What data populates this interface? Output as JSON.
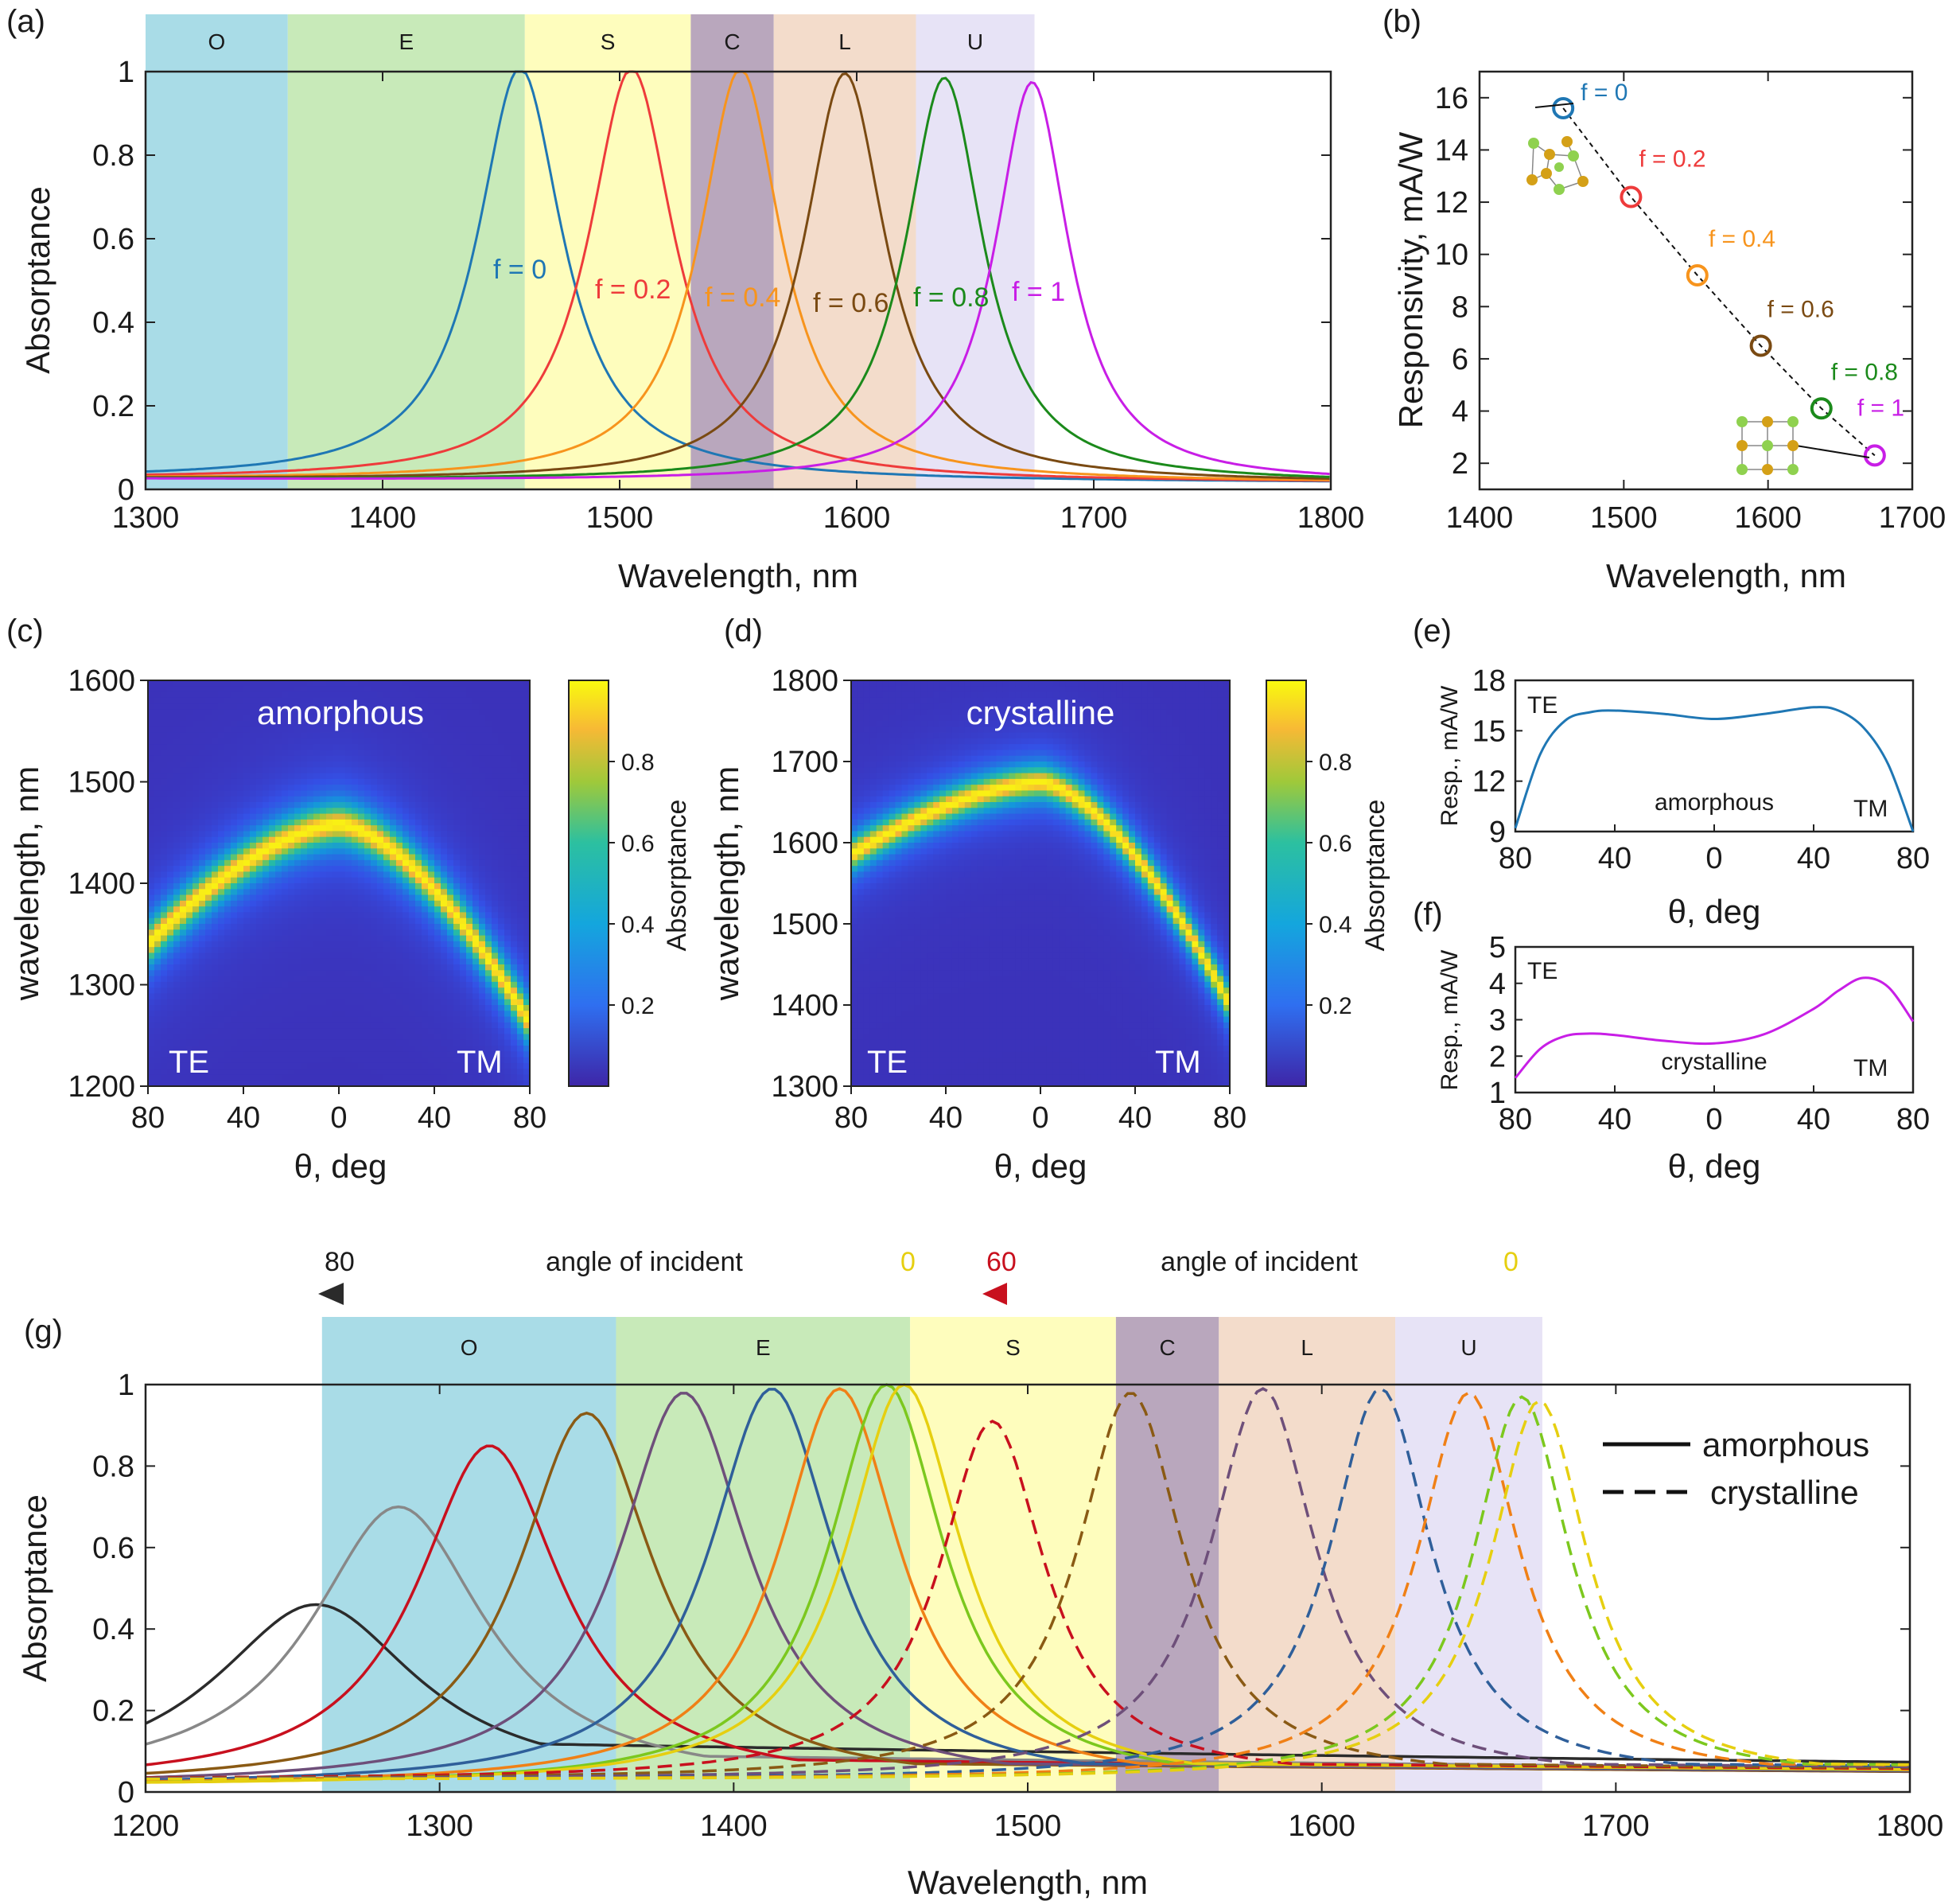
{
  "panels": {
    "a": "(a)",
    "b": "(b)",
    "c": "(c)",
    "d": "(d)",
    "e": "(e)",
    "f": "(f)",
    "g": "(g)"
  },
  "bands": [
    {
      "label": "O",
      "from": 1260,
      "to": 1360,
      "color": "#a9dce7"
    },
    {
      "label": "E",
      "from": 1360,
      "to": 1460,
      "color": "#c8eab9"
    },
    {
      "label": "S",
      "from": 1460,
      "to": 1530,
      "color": "#fefdbd"
    },
    {
      "label": "C",
      "from": 1530,
      "to": 1565,
      "color": "#b9a7bd"
    },
    {
      "label": "L",
      "from": 1565,
      "to": 1625,
      "color": "#f3dccb"
    },
    {
      "label": "U",
      "from": 1625,
      "to": 1675,
      "color": "#e7e3f6"
    }
  ],
  "chart_data": [
    {
      "id": "a",
      "type": "line",
      "xlabel": "Wavelength, nm",
      "ylabel": "Absorptance",
      "xlim": [
        1300,
        1800
      ],
      "ylim": [
        0,
        1
      ],
      "xticks": [
        1300,
        1400,
        1500,
        1600,
        1700,
        1800
      ],
      "yticks": [
        0,
        0.2,
        0.4,
        0.6,
        0.8,
        1
      ],
      "series": [
        {
          "name": "f = 0",
          "center": 1458,
          "peak": 1.0,
          "width": 22,
          "base": 0.02,
          "color": "#1f77b4"
        },
        {
          "name": "f = 0.2",
          "center": 1505,
          "peak": 1.0,
          "width": 22,
          "base": 0.02,
          "color": "#ee3b3b"
        },
        {
          "name": "f = 0.4",
          "center": 1551,
          "peak": 1.0,
          "width": 21,
          "base": 0.02,
          "color": "#f7941d"
        },
        {
          "name": "f = 0.6",
          "center": 1595,
          "peak": 0.99,
          "width": 21,
          "base": 0.02,
          "color": "#7a4a12"
        },
        {
          "name": "f = 0.8",
          "center": 1637,
          "peak": 0.98,
          "width": 20,
          "base": 0.02,
          "color": "#1b8a1b"
        },
        {
          "name": "f = 1",
          "center": 1674,
          "peak": 0.97,
          "width": 19,
          "base": 0.02,
          "color": "#c81ee6"
        }
      ]
    },
    {
      "id": "b",
      "type": "scatter",
      "xlabel": "Wavelength, nm",
      "ylabel": "Responsivity, mA/W",
      "xlim": [
        1400,
        1700
      ],
      "ylim": [
        1,
        17
      ],
      "xticks": [
        1400,
        1500,
        1600,
        1700
      ],
      "yticks": [
        2,
        4,
        6,
        8,
        10,
        12,
        14,
        16
      ],
      "points": [
        {
          "label": "f = 0",
          "x": 1458,
          "y": 15.6,
          "color": "#1f77b4"
        },
        {
          "label": "f = 0.2",
          "x": 1505,
          "y": 12.2,
          "color": "#ee3b3b"
        },
        {
          "label": "f = 0.4",
          "x": 1551,
          "y": 9.2,
          "color": "#f7941d"
        },
        {
          "label": "f = 0.6",
          "x": 1595,
          "y": 6.5,
          "color": "#7a4a12"
        },
        {
          "label": "f = 0.8",
          "x": 1637,
          "y": 4.1,
          "color": "#1b8a1b"
        },
        {
          "label": "f = 1",
          "x": 1674,
          "y": 2.3,
          "color": "#c81ee6"
        }
      ]
    },
    {
      "id": "c",
      "type": "heatmap",
      "title": "amorphous",
      "xlabel": "θ, deg",
      "ylabel": "wavelength, nm",
      "xticks": [
        "80",
        "40",
        "0",
        "40",
        "80"
      ],
      "ylim": [
        1200,
        1600
      ],
      "yticks": [
        1200,
        1300,
        1400,
        1500,
        1600
      ],
      "corner_left": "TE",
      "corner_right": "TM",
      "ridge_center": 1458,
      "ridge_te": 1340,
      "ridge_tm": 1262,
      "colorbar_label": "Absorptance",
      "colorbar_ticks": [
        "0.2",
        "0.4",
        "0.6",
        "0.8"
      ]
    },
    {
      "id": "d",
      "type": "heatmap",
      "title": "crystalline",
      "xlabel": "θ, deg",
      "ylabel": "wavelength, nm",
      "xticks": [
        "80",
        "40",
        "0",
        "40",
        "80"
      ],
      "ylim": [
        1300,
        1800
      ],
      "yticks": [
        1300,
        1400,
        1500,
        1600,
        1700,
        1800
      ],
      "corner_left": "TE",
      "corner_right": "TM",
      "ridge_center": 1674,
      "ridge_te": 1585,
      "ridge_tm": 1400,
      "colorbar_label": "Absorptance",
      "colorbar_ticks": [
        "0.2",
        "0.4",
        "0.6",
        "0.8"
      ]
    },
    {
      "id": "e",
      "type": "line",
      "xlabel": "θ, deg",
      "ylabel": "Resp., mA/W",
      "ylim": [
        9,
        18
      ],
      "yticks": [
        9,
        12,
        15,
        18
      ],
      "xticks": [
        "80",
        "40",
        "0",
        "40",
        "80"
      ],
      "annotation": "amorphous",
      "corner_left": "TE",
      "corner_right": "TM",
      "color": "#1f77b4",
      "theta": [
        -80,
        -70,
        -60,
        -50,
        -40,
        -20,
        0,
        20,
        40,
        50,
        60,
        70,
        80
      ],
      "values": [
        9.2,
        13.6,
        15.6,
        16.1,
        16.2,
        16.0,
        15.7,
        16.0,
        16.4,
        16.2,
        15.2,
        13.0,
        9.0
      ]
    },
    {
      "id": "f",
      "type": "line",
      "xlabel": "θ, deg",
      "ylabel": "Resp., mA/W",
      "ylim": [
        1,
        5
      ],
      "yticks": [
        1,
        2,
        3,
        4,
        5
      ],
      "xticks": [
        "80",
        "40",
        "0",
        "40",
        "80"
      ],
      "annotation": "crystalline",
      "corner_left": "TE",
      "corner_right": "TM",
      "color": "#c81ee6",
      "theta": [
        -80,
        -70,
        -60,
        -50,
        -40,
        -20,
        0,
        20,
        40,
        50,
        60,
        70,
        80
      ],
      "values": [
        1.4,
        2.2,
        2.55,
        2.62,
        2.58,
        2.42,
        2.35,
        2.6,
        3.3,
        3.8,
        4.15,
        3.9,
        2.95
      ]
    },
    {
      "id": "g",
      "type": "line",
      "xlabel": "Wavelength, nm",
      "ylabel": "Absorptance",
      "xlim": [
        1200,
        1800
      ],
      "ylim": [
        0,
        1
      ],
      "xticks": [
        1200,
        1300,
        1400,
        1500,
        1600,
        1700,
        1800
      ],
      "yticks": [
        0,
        0.2,
        0.4,
        0.6,
        0.8,
        1
      ],
      "legend": [
        {
          "label": "amorphous",
          "style": "solid"
        },
        {
          "label": "crystalline",
          "style": "dashed"
        }
      ],
      "arrow_left": {
        "text": "angle of incident",
        "start": "80",
        "end": "0"
      },
      "arrow_right": {
        "text": "angle of incident",
        "start": "60",
        "end": "0"
      },
      "amorphous": [
        {
          "center": 1258,
          "peak": 0.46,
          "width": 42,
          "tail": 0.12,
          "color": "#2b2b2b"
        },
        {
          "center": 1286,
          "peak": 0.7,
          "width": 36,
          "tail": 0.09,
          "color": "#888888"
        },
        {
          "center": 1317,
          "peak": 0.85,
          "width": 30,
          "tail": 0.08,
          "color": "#c8101e"
        },
        {
          "center": 1350,
          "peak": 0.93,
          "width": 28,
          "tail": 0.07,
          "color": "#8a5a14"
        },
        {
          "center": 1383,
          "peak": 0.98,
          "width": 27,
          "tail": 0.07,
          "color": "#6e4f7a"
        },
        {
          "center": 1413,
          "peak": 0.99,
          "width": 26,
          "tail": 0.07,
          "color": "#2f5f9a"
        },
        {
          "center": 1436,
          "peak": 0.99,
          "width": 25,
          "tail": 0.07,
          "color": "#f08016"
        },
        {
          "center": 1452,
          "peak": 1.0,
          "width": 24,
          "tail": 0.07,
          "color": "#7cc81e"
        },
        {
          "center": 1458,
          "peak": 1.0,
          "width": 24,
          "tail": 0.07,
          "color": "#e6cf10"
        }
      ],
      "crystalline": [
        {
          "center": 1488,
          "peak": 0.91,
          "width": 22,
          "tail": 0.06,
          "color": "#c8101e"
        },
        {
          "center": 1535,
          "peak": 0.98,
          "width": 22,
          "tail": 0.06,
          "color": "#8a5a14"
        },
        {
          "center": 1580,
          "peak": 0.99,
          "width": 22,
          "tail": 0.06,
          "color": "#6e4f7a"
        },
        {
          "center": 1620,
          "peak": 0.99,
          "width": 21,
          "tail": 0.06,
          "color": "#2f5f9a"
        },
        {
          "center": 1650,
          "peak": 0.98,
          "width": 21,
          "tail": 0.06,
          "color": "#f08016"
        },
        {
          "center": 1668,
          "peak": 0.97,
          "width": 20,
          "tail": 0.06,
          "color": "#7cc81e"
        },
        {
          "center": 1674,
          "peak": 0.96,
          "width": 20,
          "tail": 0.06,
          "color": "#e6cf10"
        }
      ]
    }
  ]
}
